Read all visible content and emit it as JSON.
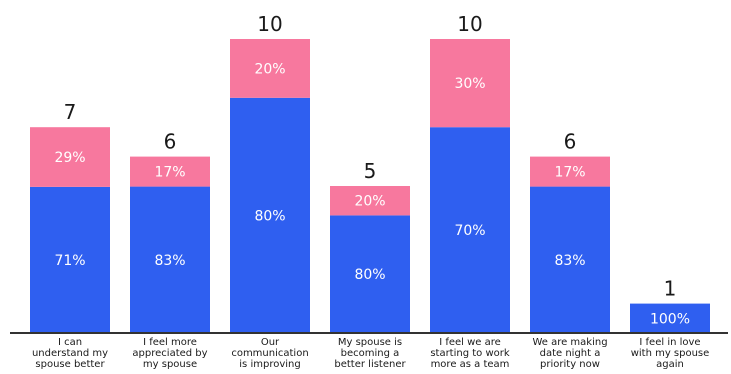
{
  "chart_data": {
    "type": "bar",
    "stacked": true,
    "categories": [
      [
        "I can",
        "understand my",
        "spouse better"
      ],
      [
        "I feel more",
        "appreciated by",
        "my spouse"
      ],
      [
        "Our",
        "communication",
        "is improving"
      ],
      [
        "My spouse is",
        "becoming a",
        "better listener"
      ],
      [
        "I feel we are",
        "starting to work",
        "more as a team"
      ],
      [
        "We are making",
        "date night a",
        "priority now"
      ],
      [
        "I feel in love",
        "with my spouse",
        "again"
      ]
    ],
    "totals": [
      7,
      6,
      10,
      5,
      10,
      6,
      1
    ],
    "series": [
      {
        "color": "#2f5ff0",
        "percents": [
          71,
          83,
          80,
          80,
          70,
          83,
          100
        ]
      },
      {
        "color": "#f7789e",
        "percents": [
          29,
          17,
          20,
          20,
          30,
          17,
          0
        ]
      }
    ],
    "ylim": [
      0,
      10
    ],
    "grid": false,
    "axis_color": "#333333"
  }
}
